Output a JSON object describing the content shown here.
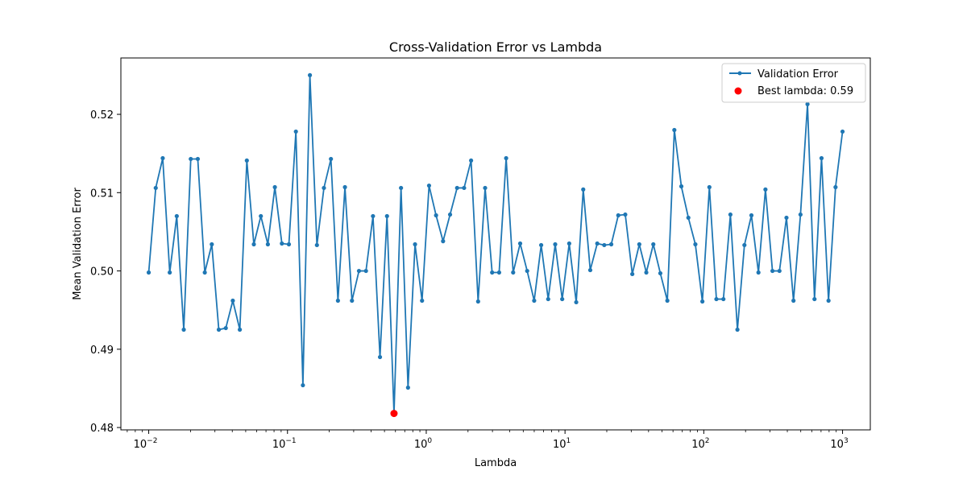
{
  "chart_data": {
    "type": "line",
    "title": "Cross-Validation Error vs Lambda",
    "xlabel": "Lambda",
    "ylabel": "Mean Validation Error",
    "x_scale": "log",
    "xlim": [
      0.0063,
      1585
    ],
    "ylim": [
      0.4797,
      0.5272
    ],
    "x_ticks": [
      {
        "value": 0.01,
        "base": "10",
        "exp": "−2"
      },
      {
        "value": 0.1,
        "base": "10",
        "exp": "−1"
      },
      {
        "value": 1,
        "base": "10",
        "exp": "0"
      },
      {
        "value": 10,
        "base": "10",
        "exp": "1"
      },
      {
        "value": 100,
        "base": "10",
        "exp": "2"
      },
      {
        "value": 1000,
        "base": "10",
        "exp": "3"
      }
    ],
    "y_ticks": [
      {
        "value": 0.48,
        "label": "0.48"
      },
      {
        "value": 0.49,
        "label": "0.49"
      },
      {
        "value": 0.5,
        "label": "0.50"
      },
      {
        "value": 0.51,
        "label": "0.51"
      },
      {
        "value": 0.52,
        "label": "0.52"
      }
    ],
    "grid": false,
    "legend_position": "top-right",
    "series": [
      {
        "name": "Validation Error",
        "color": "#1f77b4",
        "x_range": [
          0.01,
          1000
        ],
        "y": [
          0.4998,
          0.5106,
          0.5144,
          0.4998,
          0.507,
          0.4925,
          0.5143,
          0.5143,
          0.4998,
          0.5034,
          0.4925,
          0.4927,
          0.4962,
          0.4925,
          0.5141,
          0.5034,
          0.507,
          0.5034,
          0.5107,
          0.5035,
          0.5034,
          0.5178,
          0.4854,
          0.525,
          0.5033,
          0.5106,
          0.5143,
          0.4962,
          0.5107,
          0.4962,
          0.5,
          0.5,
          0.507,
          0.489,
          0.507,
          0.4818,
          0.5106,
          0.4851,
          0.5034,
          0.4962,
          0.5109,
          0.5071,
          0.5038,
          0.5072,
          0.5106,
          0.5106,
          0.5141,
          0.4961,
          0.5106,
          0.4998,
          0.4998,
          0.5144,
          0.4998,
          0.5035,
          0.5,
          0.4962,
          0.5033,
          0.4964,
          0.5034,
          0.4964,
          0.5035,
          0.496,
          0.5104,
          0.5001,
          0.5035,
          0.5033,
          0.5034,
          0.5071,
          0.5072,
          0.4996,
          0.5034,
          0.4998,
          0.5034,
          0.4997,
          0.4962,
          0.518,
          0.5108,
          0.5068,
          0.5034,
          0.4961,
          0.5107,
          0.4964,
          0.4964,
          0.5072,
          0.4925,
          0.5033,
          0.5071,
          0.4998,
          0.5104,
          0.5,
          0.5,
          0.5068,
          0.4962,
          0.5072,
          0.5213,
          0.4964,
          0.5144,
          0.4962,
          0.5107,
          0.5178
        ]
      }
    ],
    "best_point": {
      "name": "Best lambda: 0.59",
      "x": 0.5857,
      "y": 0.4818,
      "color": "#ff0000"
    }
  }
}
